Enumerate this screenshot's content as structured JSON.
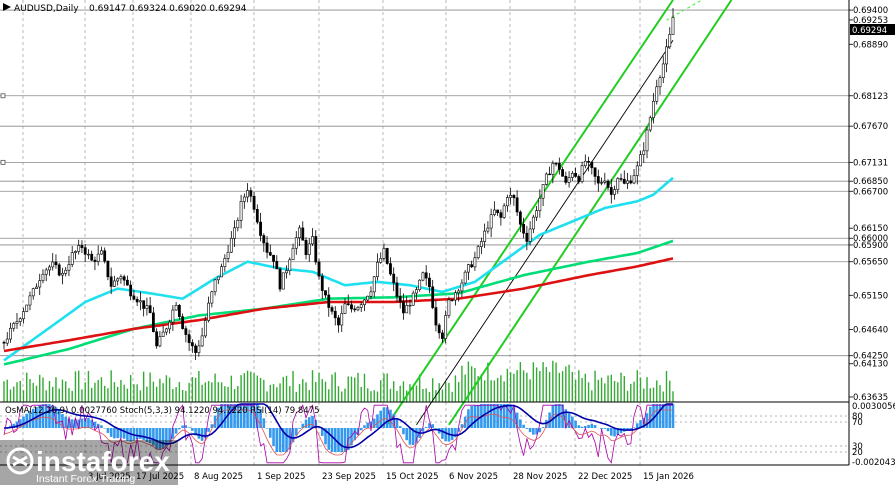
{
  "header": {
    "symbol": "AUDUSD,Daily",
    "ohlc": "0.69147 0.69324 0.69020 0.69294"
  },
  "osc_header": "OsMA(12,26,9) 0.0027760  Stoch(5,3,3) 94.1220 94.7220  RSI(14) 79.8475",
  "branding": {
    "name": "instaforex",
    "tagline": "Instant Forex Trading"
  },
  "colors": {
    "ma_fast": "#1ee0ee",
    "ma_mid": "#00dd77",
    "ma_slow": "#dd1111",
    "channel": "#22cc22",
    "candle": "#000000",
    "volume": "#33aa33",
    "osma": "#3399ee",
    "signal": "#0000aa",
    "stoch": "#aa00aa",
    "rsi": "#dd5555",
    "level_line": "#c0c0c0"
  },
  "chart_data": {
    "type": "candlestick",
    "y_ticks": [
      "0.69400",
      "0.69253",
      "0.68890",
      "0.68123",
      "0.67670",
      "0.67131",
      "0.66850",
      "0.66700",
      "0.66150",
      "0.66000",
      "0.65900",
      "0.65650",
      "0.65150",
      "0.64640",
      "0.64250",
      "0.64130",
      "0.63635"
    ],
    "x_ticks": [
      "3 Jul 2025",
      "17 Jul 2025",
      "8 Aug 2025",
      "1 Sep 2025",
      "23 Sep 2025",
      "15 Oct 2025",
      "6 Nov 2025",
      "28 Nov 2025",
      "22 Dec 2025",
      "15 Jan 2026"
    ],
    "horizontal_levels": [
      0.694,
      0.68123,
      0.6767,
      0.67131,
      0.6685,
      0.667,
      0.66,
      0.659,
      0.6565,
      0.6425
    ],
    "current_price": 0.69294,
    "osc_ticks": [
      "0.0030056",
      "80",
      "70",
      "30",
      "20",
      "-0.002043"
    ],
    "ylim": [
      0.6356,
      0.6955
    ],
    "close_path": [
      [
        0,
        0.6445
      ],
      [
        5,
        0.6485
      ],
      [
        9,
        0.652
      ],
      [
        12,
        0.6552
      ],
      [
        15,
        0.656
      ],
      [
        18,
        0.6545
      ],
      [
        21,
        0.6575
      ],
      [
        24,
        0.6588
      ],
      [
        27,
        0.6566
      ],
      [
        30,
        0.6577
      ],
      [
        33,
        0.653
      ],
      [
        36,
        0.6545
      ],
      [
        39,
        0.652
      ],
      [
        42,
        0.6505
      ],
      [
        45,
        0.6488
      ],
      [
        47,
        0.6438
      ],
      [
        50,
        0.6468
      ],
      [
        53,
        0.6505
      ],
      [
        55,
        0.647
      ],
      [
        57,
        0.6445
      ],
      [
        59,
        0.643
      ],
      [
        61,
        0.6455
      ],
      [
        63,
        0.65
      ],
      [
        65,
        0.6535
      ],
      [
        67,
        0.6555
      ],
      [
        69,
        0.6585
      ],
      [
        71,
        0.661
      ],
      [
        73,
        0.665
      ],
      [
        75,
        0.6675
      ],
      [
        77,
        0.6648
      ],
      [
        79,
        0.661
      ],
      [
        81,
        0.6582
      ],
      [
        83,
        0.657
      ],
      [
        85,
        0.653
      ],
      [
        87,
        0.6555
      ],
      [
        89,
        0.659
      ],
      [
        91,
        0.661
      ],
      [
        93,
        0.658
      ],
      [
        95,
        0.6597
      ],
      [
        97,
        0.654
      ],
      [
        99,
        0.651
      ],
      [
        101,
        0.6488
      ],
      [
        103,
        0.647
      ],
      [
        105,
        0.65
      ],
      [
        107,
        0.6495
      ],
      [
        109,
        0.65
      ],
      [
        111,
        0.651
      ],
      [
        113,
        0.6525
      ],
      [
        115,
        0.656
      ],
      [
        117,
        0.658
      ],
      [
        119,
        0.6545
      ],
      [
        121,
        0.6515
      ],
      [
        123,
        0.649
      ],
      [
        125,
        0.6505
      ],
      [
        127,
        0.652
      ],
      [
        129,
        0.6545
      ],
      [
        131,
        0.6528
      ],
      [
        133,
        0.6475
      ],
      [
        135,
        0.6455
      ],
      [
        137,
        0.6505
      ],
      [
        139,
        0.652
      ],
      [
        141,
        0.6535
      ],
      [
        143,
        0.6555
      ],
      [
        145,
        0.657
      ],
      [
        147,
        0.6595
      ],
      [
        149,
        0.662
      ],
      [
        151,
        0.664
      ],
      [
        153,
        0.663
      ],
      [
        155,
        0.6665
      ],
      [
        157,
        0.6658
      ],
      [
        159,
        0.662
      ],
      [
        161,
        0.66
      ],
      [
        163,
        0.663
      ],
      [
        165,
        0.666
      ],
      [
        167,
        0.669
      ],
      [
        169,
        0.6712
      ],
      [
        171,
        0.6705
      ],
      [
        173,
        0.668
      ],
      [
        175,
        0.67
      ],
      [
        177,
        0.669
      ],
      [
        179,
        0.6715
      ],
      [
        181,
        0.67
      ],
      [
        183,
        0.668
      ],
      [
        185,
        0.669
      ],
      [
        187,
        0.6665
      ],
      [
        189,
        0.6692
      ],
      [
        191,
        0.668
      ],
      [
        193,
        0.6688
      ],
      [
        195,
        0.6705
      ],
      [
        197,
        0.6735
      ],
      [
        199,
        0.678
      ],
      [
        201,
        0.683
      ],
      [
        203,
        0.686
      ],
      [
        205,
        0.69
      ],
      [
        206,
        0.6929
      ]
    ],
    "moving_averages": [
      {
        "color_key": "ma_fast",
        "values": [
          [
            0,
            0.6418
          ],
          [
            15,
            0.647
          ],
          [
            25,
            0.6505
          ],
          [
            35,
            0.6525
          ],
          [
            45,
            0.6518
          ],
          [
            55,
            0.651
          ],
          [
            65,
            0.654
          ],
          [
            75,
            0.6565
          ],
          [
            85,
            0.6555
          ],
          [
            95,
            0.655
          ],
          [
            105,
            0.653
          ],
          [
            115,
            0.6535
          ],
          [
            125,
            0.653
          ],
          [
            135,
            0.652
          ],
          [
            145,
            0.6535
          ],
          [
            155,
            0.657
          ],
          [
            165,
            0.6605
          ],
          [
            175,
            0.6625
          ],
          [
            185,
            0.6645
          ],
          [
            195,
            0.6655
          ],
          [
            200,
            0.6665
          ],
          [
            206,
            0.669
          ]
        ]
      },
      {
        "color_key": "ma_mid",
        "values": [
          [
            0,
            0.6412
          ],
          [
            20,
            0.6435
          ],
          [
            40,
            0.6465
          ],
          [
            60,
            0.6485
          ],
          [
            80,
            0.6495
          ],
          [
            100,
            0.651
          ],
          [
            120,
            0.6512
          ],
          [
            140,
            0.6518
          ],
          [
            160,
            0.6545
          ],
          [
            180,
            0.6565
          ],
          [
            195,
            0.6578
          ],
          [
            206,
            0.6596
          ]
        ]
      },
      {
        "color_key": "ma_slow",
        "values": [
          [
            0,
            0.6432
          ],
          [
            20,
            0.6448
          ],
          [
            40,
            0.6465
          ],
          [
            60,
            0.6478
          ],
          [
            80,
            0.6495
          ],
          [
            100,
            0.6505
          ],
          [
            120,
            0.6505
          ],
          [
            140,
            0.651
          ],
          [
            160,
            0.6525
          ],
          [
            180,
            0.6545
          ],
          [
            195,
            0.6558
          ],
          [
            206,
            0.657
          ]
        ]
      }
    ],
    "channel_lines": [
      {
        "from": [
          118,
          0.6322
        ],
        "to": [
          206,
          0.6955
        ]
      },
      {
        "from": [
          137,
          0.6322
        ],
        "to": [
          224,
          0.6955
        ]
      },
      {
        "from": [
          127,
          0.6322
        ],
        "to": [
          206,
          0.6895
        ]
      }
    ]
  }
}
